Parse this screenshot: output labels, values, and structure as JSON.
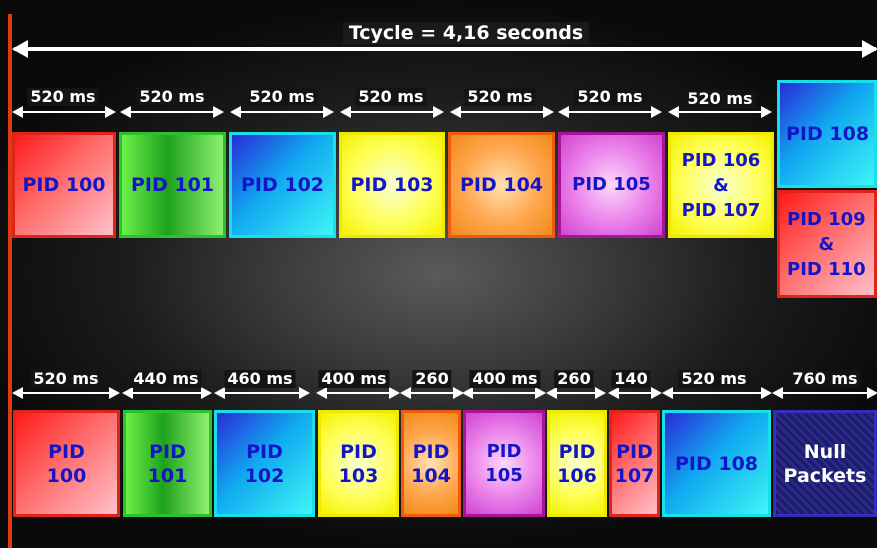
{
  "title": "Tcycle = 4,16 seconds",
  "colors": {
    "red": "#ff3030",
    "green": "#22b022",
    "cyan": "#22c8f0",
    "yellow": "#ffff40",
    "orange": "#ff9a40",
    "magenta": "#e070e0",
    "navy": "#202080",
    "text": "#1515c8"
  },
  "top_row": {
    "durations": [
      "520 ms",
      "520 ms",
      "520 ms",
      "520 ms",
      "520 ms",
      "520 ms",
      "520 ms"
    ],
    "boxes": [
      {
        "label": "PID 100",
        "color": "red"
      },
      {
        "label": "PID 101",
        "color": "green"
      },
      {
        "label": "PID 102",
        "color": "cyan"
      },
      {
        "label": "PID 103",
        "color": "yellow"
      },
      {
        "label": "PID 104",
        "color": "orange"
      },
      {
        "label": "PID 105",
        "color": "magenta"
      },
      {
        "label": "PID 106\n&\nPID 107",
        "color": "yellow"
      },
      {
        "label": "PID 108",
        "color": "cyan"
      },
      {
        "label": "PID 109\n&\nPID 110",
        "color": "red"
      }
    ]
  },
  "bottom_row": {
    "durations": [
      "520 ms",
      "440 ms",
      "460 ms",
      "400 ms",
      "260",
      "400 ms",
      "260",
      "140",
      "520 ms",
      "760 ms"
    ],
    "boxes": [
      {
        "label": "PID\n100",
        "color": "red"
      },
      {
        "label": "PID\n101",
        "color": "green"
      },
      {
        "label": "PID\n102",
        "color": "cyan"
      },
      {
        "label": "PID\n103",
        "color": "yellow"
      },
      {
        "label": "PID\n104",
        "color": "orange"
      },
      {
        "label": "PID\n105",
        "color": "magenta"
      },
      {
        "label": "PID\n106",
        "color": "yellow"
      },
      {
        "label": "PID\n107",
        "color": "red"
      },
      {
        "label": "PID 108",
        "color": "cyan"
      },
      {
        "label": "Null\nPackets",
        "color": "navy"
      }
    ]
  }
}
